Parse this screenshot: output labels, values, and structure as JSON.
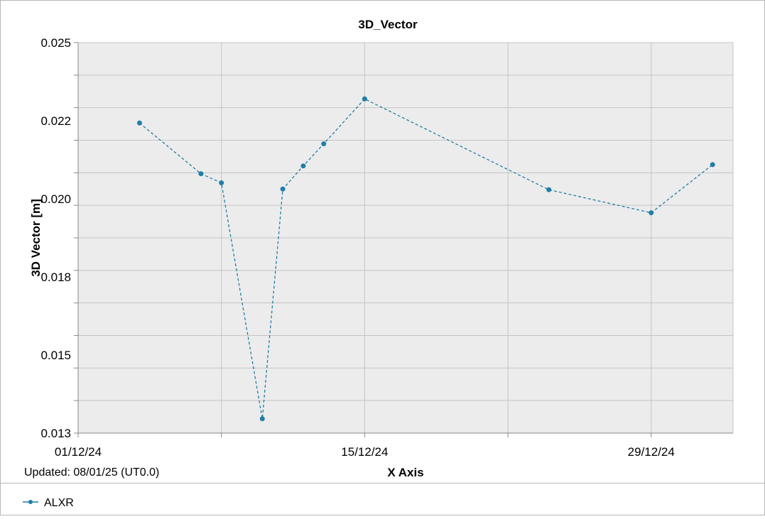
{
  "chart_data": {
    "type": "line",
    "title": "3D_Vector",
    "xlabel": "X Axis",
    "ylabel": "3D Vector [m]",
    "x_ticks": [
      "01/12/24",
      "15/12/24",
      "29/12/24"
    ],
    "y_ticks": [
      "0.013",
      "0.015",
      "0.018",
      "0.020",
      "0.022",
      "0.025"
    ],
    "xlim": [
      "2024-12-01",
      "2025-01-02"
    ],
    "ylim": [
      0.013,
      0.025
    ],
    "grid": true,
    "legend_position": "bottom-left",
    "series": [
      {
        "name": "ALXR",
        "color": "#1f7ea8",
        "line_style": "dashed",
        "x": [
          "2024-12-04",
          "2024-12-07",
          "2024-12-08",
          "2024-12-10",
          "2024-12-11",
          "2024-12-12",
          "2024-12-13",
          "2024-12-15",
          "2024-12-24",
          "2024-12-29",
          "2025-01-01"
        ],
        "values": [
          0.02253,
          0.02097,
          0.02069,
          0.01344,
          0.0205,
          0.02121,
          0.02189,
          0.02327,
          0.02048,
          0.01977,
          0.02125
        ]
      }
    ]
  },
  "footer": {
    "updated": "Updated: 08/01/25 (UT0.0)"
  }
}
